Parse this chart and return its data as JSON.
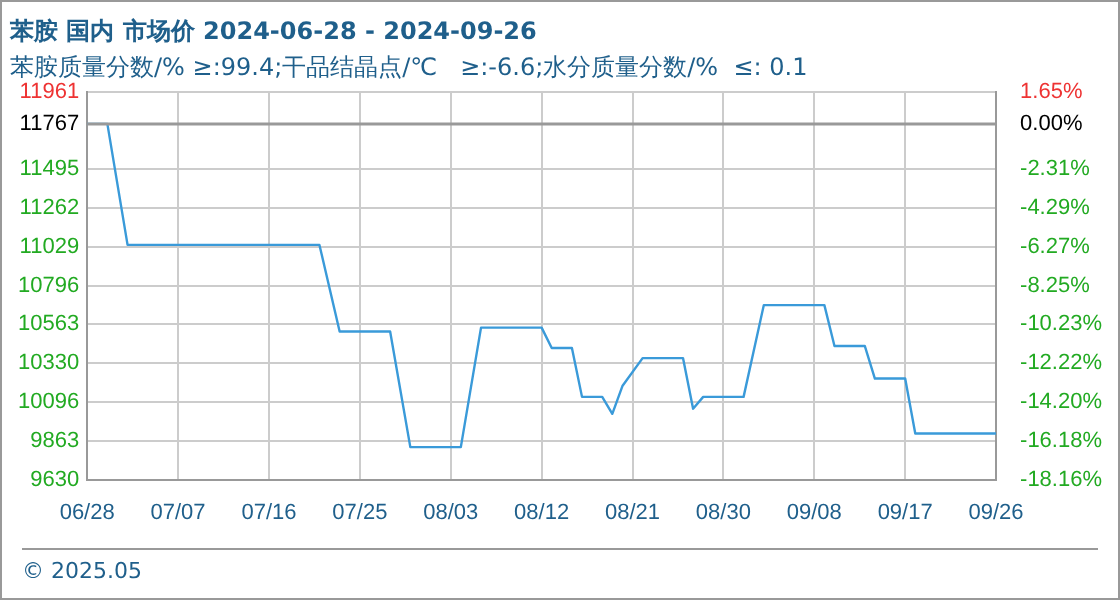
{
  "chart_data": {
    "type": "line",
    "title": "苯胺 国内 市场价 2024-06-28 - 2024-09-26",
    "subtitle": "苯胺质量分数/% ≥:99.4;干品结晶点/℃   ≥:-6.6;水分质量分数/%  ≤: 0.1",
    "x": [
      "--06-28",
      "--06-30",
      "--07-02",
      "--07-21",
      "--07-23",
      "--07-28",
      "--07-30",
      "--08-04",
      "--08-06",
      "--08-12",
      "--08-13",
      "--08-15",
      "--08-16",
      "--08-18",
      "--08-19",
      "--08-20",
      "--08-22",
      "--08-26",
      "--08-27",
      "--08-28",
      "--09-01",
      "--09-03",
      "--09-09",
      "--09-10",
      "--09-13",
      "--09-14",
      "--09-17",
      "--09-18",
      "--09-26"
    ],
    "series": [
      {
        "color": "#3a9ad9",
        "values": [
          11767,
          11767,
          11040,
          11040,
          10520,
          10520,
          9825,
          9825,
          10543,
          10543,
          10421,
          10421,
          10127,
          10127,
          10025,
          10192,
          10360,
          10360,
          10056,
          10127,
          10127,
          10678,
          10678,
          10433,
          10433,
          10237,
          10237,
          9907,
          9907
        ]
      }
    ],
    "xlim": [
      "--06-28",
      "--09-26"
    ],
    "xticks": [
      {
        "value": "--06-28",
        "label": "06/28"
      },
      {
        "value": "--07-07",
        "label": "07/07"
      },
      {
        "value": "--07-16",
        "label": "07/16"
      },
      {
        "value": "--07-25",
        "label": "07/25"
      },
      {
        "value": "--08-03",
        "label": "08/03"
      },
      {
        "value": "--08-12",
        "label": "08/12"
      },
      {
        "value": "--08-21",
        "label": "08/21"
      },
      {
        "value": "--08-30",
        "label": "08/30"
      },
      {
        "value": "--09-08",
        "label": "09/08"
      },
      {
        "value": "--09-17",
        "label": "09/17"
      },
      {
        "value": "--09-26",
        "label": "09/26"
      }
    ],
    "ylim": [
      9630,
      11961
    ],
    "yticks": [
      9630,
      9863,
      10096,
      10330,
      10563,
      10796,
      11029,
      11262,
      11495,
      11767,
      11961
    ],
    "y2lim": [
      -18.16,
      1.65
    ],
    "y2ticks": [
      {
        "value": -18.16,
        "label": "-18.16%"
      },
      {
        "value": -16.18,
        "label": "-16.18%"
      },
      {
        "value": -14.2,
        "label": "-14.20%"
      },
      {
        "value": -12.22,
        "label": "-12.22%"
      },
      {
        "value": -10.23,
        "label": "-10.23%"
      },
      {
        "value": -8.25,
        "label": "-8.25%"
      },
      {
        "value": -6.27,
        "label": "-6.27%"
      },
      {
        "value": -4.29,
        "label": "-4.29%"
      },
      {
        "value": -2.31,
        "label": "-2.31%"
      },
      {
        "value": 0,
        "label": "0.00%"
      },
      {
        "value": 1.65,
        "label": "1.65%"
      }
    ],
    "ref_lines": [
      {
        "axis": "y",
        "value": 11767,
        "color": "#999999"
      }
    ],
    "annotations": [
      "© 2025.05"
    ],
    "grid": true,
    "legend": false,
    "marker": "none",
    "line_style": "solid"
  }
}
